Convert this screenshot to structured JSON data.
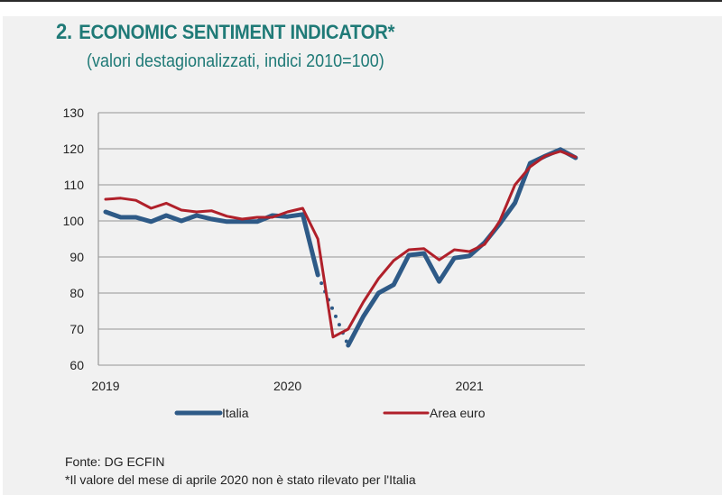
{
  "header": {
    "number": "2.",
    "title": "ECONOMIC SENTIMENT INDICATOR*",
    "subtitle": "(valori destagionalizzati, indici 2010=100)"
  },
  "footer": {
    "source": "Fonte: DG ECFIN",
    "note": "*Il valore del mese di aprile 2020 non è stato rilevato per l'Italia"
  },
  "chart_data": {
    "type": "line",
    "title": "ECONOMIC SENTIMENT INDICATOR*",
    "subtitle": "(valori destagionalizzati, indici 2010=100)",
    "xlabel": "",
    "ylabel": "",
    "ylim": [
      60,
      130
    ],
    "yticks": [
      60,
      70,
      80,
      90,
      100,
      110,
      120,
      130
    ],
    "xtick_labels": [
      {
        "label": "2019",
        "month_index": 0
      },
      {
        "label": "2020",
        "month_index": 12
      },
      {
        "label": "2021",
        "month_index": 24
      }
    ],
    "x_range_months": [
      0,
      31
    ],
    "x_period": "Jan 2019 - Aug 2021 (monthly)",
    "grid": "horizontal",
    "legend_position": "bottom",
    "series": [
      {
        "name": "Italia",
        "color": "#2e5a87",
        "values": [
          102.5,
          101.0,
          101.0,
          99.8,
          101.5,
          100.0,
          101.5,
          100.5,
          99.8,
          99.8,
          99.8,
          101.5,
          101.2,
          101.8,
          85.0,
          null,
          65.5,
          73.5,
          80.0,
          82.3,
          90.5,
          91.0,
          83.2,
          89.7,
          90.3,
          94.0,
          99.2,
          105.0,
          116.0,
          118.0,
          119.8,
          117.5
        ],
        "missing_note": "April 2020 not recorded (dotted connector)"
      },
      {
        "name": "Area euro",
        "color": "#b0202a",
        "values": [
          106.0,
          106.3,
          105.7,
          103.5,
          104.9,
          103.0,
          102.5,
          102.8,
          101.3,
          100.5,
          101.0,
          101.0,
          102.5,
          103.5,
          95.0,
          67.8,
          70.0,
          77.5,
          84.0,
          89.0,
          92.0,
          92.3,
          89.2,
          92.0,
          91.5,
          93.5,
          100.0,
          110.0,
          115.0,
          118.0,
          119.3,
          117.7
        ]
      }
    ]
  }
}
